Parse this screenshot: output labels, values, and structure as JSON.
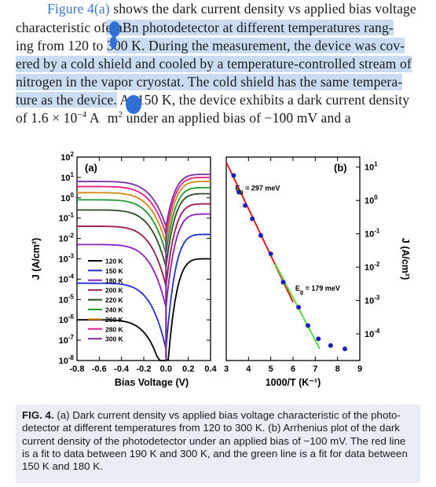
{
  "text": {
    "l1a": "Figure 4(a)",
    "l1b": " shows the dark current density vs applied bias voltage",
    "l2a": "characteristic of",
    "l2b": "e nBn photodetector at different temperatures rang-",
    "l3a": "ing from 120 to ",
    "l3b": "300 K. During the measurement, the device was cov-",
    "l4": "ered by a cold shield and cooled by a temperature-controlled stream of",
    "l5": "nitrogen in the vapor cryostat. The cold shield has the same tempera-",
    "l6a": "ture as the device.",
    "l6b": " At 150 K, the device exhibits a dark current density",
    "l7a": "of  1.6 × 10",
    "l7sup": "−4",
    "l7b": "  A",
    "l7c": "m",
    "l7sup2": "2",
    "l7d": "  under  an  applied  bias  of  −100 mV  and  a"
  },
  "caption": {
    "label": "FIG. 4.",
    "text": " (a) Dark current density vs applied bias voltage characteristic of the photo-detector at different temperatures from 120 to 300 K. (b) Arrhenius plot of the dark current density of the photodetector under an applied bias of −100 mV. The red line is a fit to data between 190 K and 300 K, and the green line is a fit for data between 150 K and 180 K."
  },
  "chart_data": [
    {
      "type": "line",
      "panel_label": "(a)",
      "xlabel": "Bias Voltage (V)",
      "ylabel": "J (A/cm²)",
      "xlim": [
        -0.8,
        0.4
      ],
      "ylim_exp": [
        -8,
        2
      ],
      "y_log": true,
      "xticks": [
        "-0.8",
        "-0.6",
        "-0.4",
        "-0.2",
        "0.0",
        "0.2",
        "0.4"
      ],
      "yticks_exp": [
        "2",
        "1",
        "0",
        "-1",
        "-2",
        "-3",
        "-4",
        "-5",
        "-6",
        "-7",
        "-8"
      ],
      "legend_position": "bottom-left",
      "series": [
        {
          "name": "120 K",
          "color": "#000000",
          "left": -6.0,
          "right": -3.0
        },
        {
          "name": "150 K",
          "color": "#1f2fd6",
          "left": -4.2,
          "right": -1.8
        },
        {
          "name": "180 K",
          "color": "#8a1fc4",
          "left": -2.3,
          "right": -0.8
        },
        {
          "name": "200 K",
          "color": "#9a1b4a",
          "left": -1.4,
          "right": -0.3
        },
        {
          "name": "220 K",
          "color": "#2e4b2a",
          "left": -0.6,
          "right": 0.2
        },
        {
          "name": "240 K",
          "color": "#1f9a2e",
          "left": -0.1,
          "right": 0.5
        },
        {
          "name": "260 K",
          "color": "#d18a14",
          "left": 0.25,
          "right": 0.8
        },
        {
          "name": "280 K",
          "color": "#e0218a",
          "left": 0.55,
          "right": 1.0
        },
        {
          "name": "300 K",
          "color": "#7a2fa3",
          "left": 0.8,
          "right": 1.15
        }
      ]
    },
    {
      "type": "scatter",
      "panel_label": "(b)",
      "xlabel": "1000/T (K⁻¹)",
      "ylabel": "J (A/cm²)",
      "xlim": [
        3,
        9
      ],
      "ylim_exp": [
        -4.8,
        1.3
      ],
      "y_log": true,
      "xticks": [
        "3",
        "4",
        "5",
        "6",
        "7",
        "8",
        "9"
      ],
      "yticks_exp": [
        "1",
        "0",
        "-1",
        "-2",
        "-3",
        "-4"
      ],
      "annotations": [
        {
          "text": "E",
          "sub": "g",
          "suffix": " = 297 meV"
        },
        {
          "text": "E",
          "sub": "g",
          "suffix": " = 179 meV"
        }
      ],
      "points": [
        [
          3.33,
          0.75
        ],
        [
          3.57,
          0.25
        ],
        [
          3.85,
          -0.15
        ],
        [
          4.17,
          -0.55
        ],
        [
          4.55,
          -1.05
        ],
        [
          5.0,
          -1.6
        ],
        [
          5.56,
          -2.45
        ],
        [
          6.25,
          -3.2
        ],
        [
          6.67,
          -3.75
        ],
        [
          7.14,
          -4.15
        ],
        [
          7.69,
          -4.35
        ],
        [
          8.33,
          -4.45
        ]
      ],
      "fits": [
        {
          "name": "fit 190–300 K",
          "color": "#e02020",
          "x": [
            3.0,
            6.0
          ],
          "y": [
            1.15,
            -3.05
          ]
        },
        {
          "name": "fit 150–180 K",
          "color": "#55e040",
          "x": [
            5.2,
            7.2
          ],
          "y": [
            -1.9,
            -4.45
          ]
        }
      ]
    }
  ]
}
